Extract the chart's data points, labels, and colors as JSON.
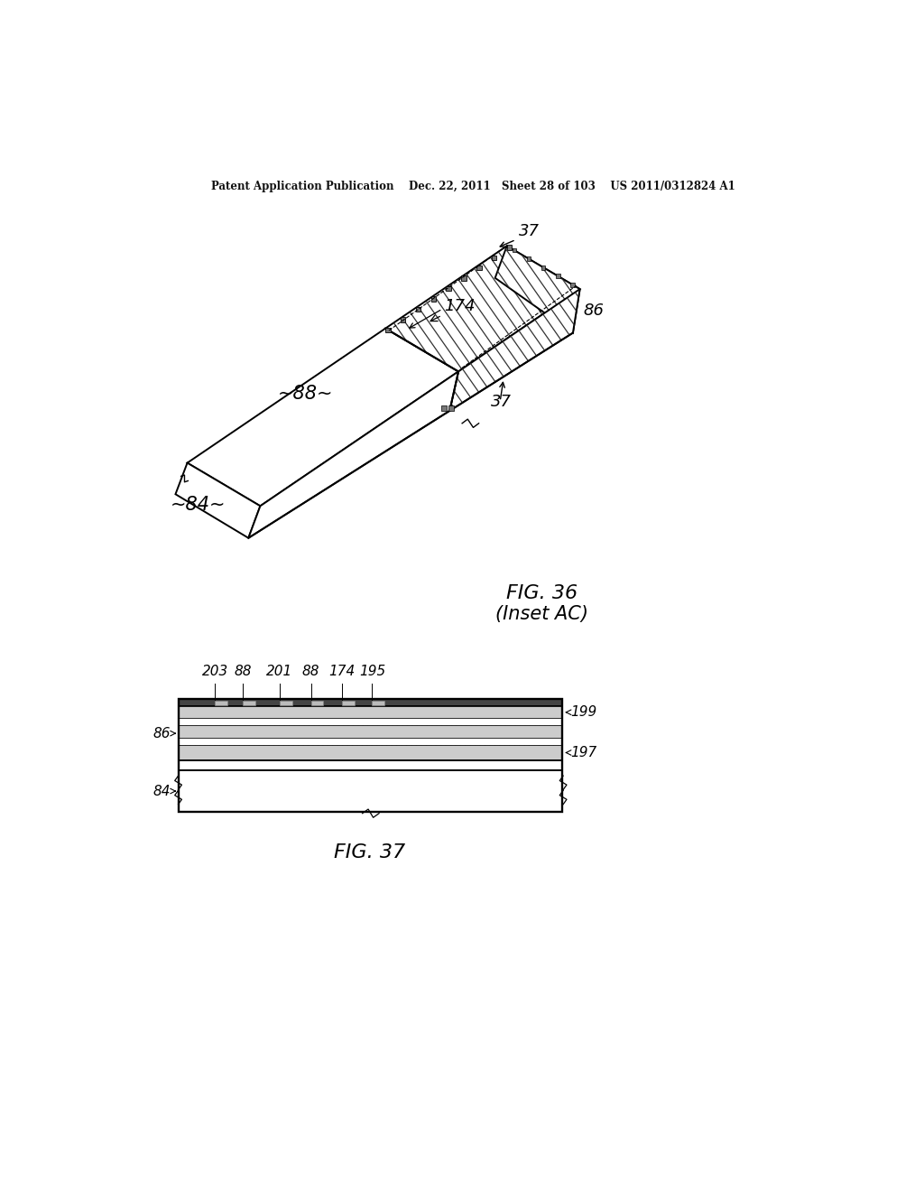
{
  "bg_color": "#ffffff",
  "header_text": "Patent Application Publication    Dec. 22, 2011   Sheet 28 of 103    US 2011/0312824 A1",
  "fig36_caption": "FIG. 36",
  "fig36_subcaption": "(Inset AC)",
  "fig37_caption": "FIG. 37"
}
